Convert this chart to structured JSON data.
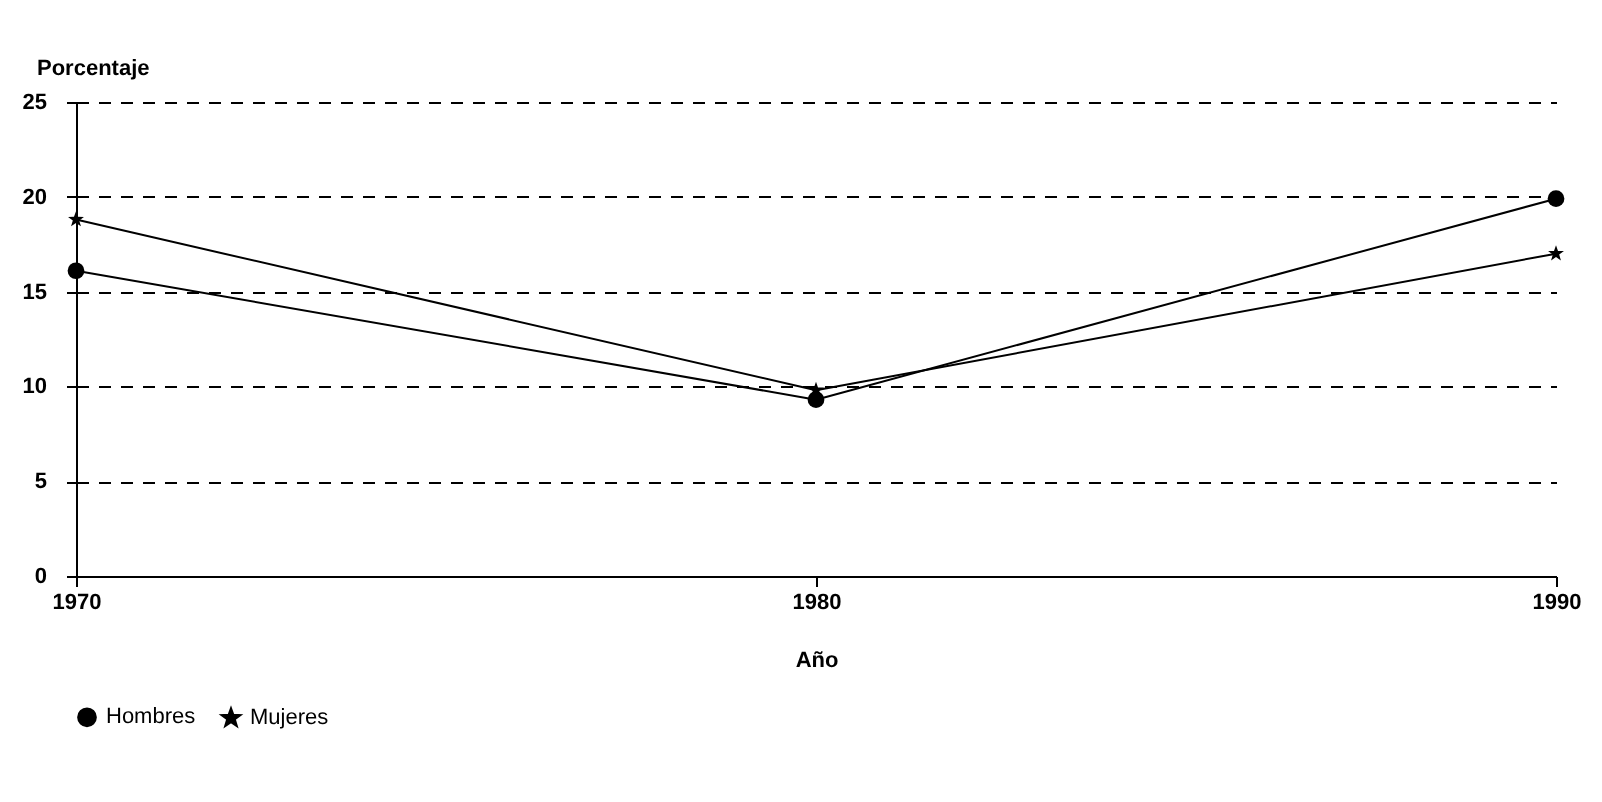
{
  "chart_data": {
    "type": "line",
    "xlabel": "Año",
    "ylabel": "Porcentaje",
    "x": [
      1970,
      1980,
      1990
    ],
    "series": [
      {
        "name": "Hombres",
        "color": "#000000",
        "marker": "circle",
        "values": [
          16.1,
          9.3,
          19.9
        ]
      },
      {
        "name": "Mujeres",
        "color": "#000000",
        "marker": "star",
        "values": [
          18.8,
          9.8,
          17.0
        ]
      }
    ],
    "xlim": [
      1970,
      1990
    ],
    "xticks": [
      1970,
      1980,
      1990
    ],
    "ylim": [
      0,
      25
    ],
    "yticks": [
      0,
      5,
      10,
      15,
      20,
      25
    ],
    "grid": "y",
    "legend": "bottom",
    "line_style": "solid"
  }
}
